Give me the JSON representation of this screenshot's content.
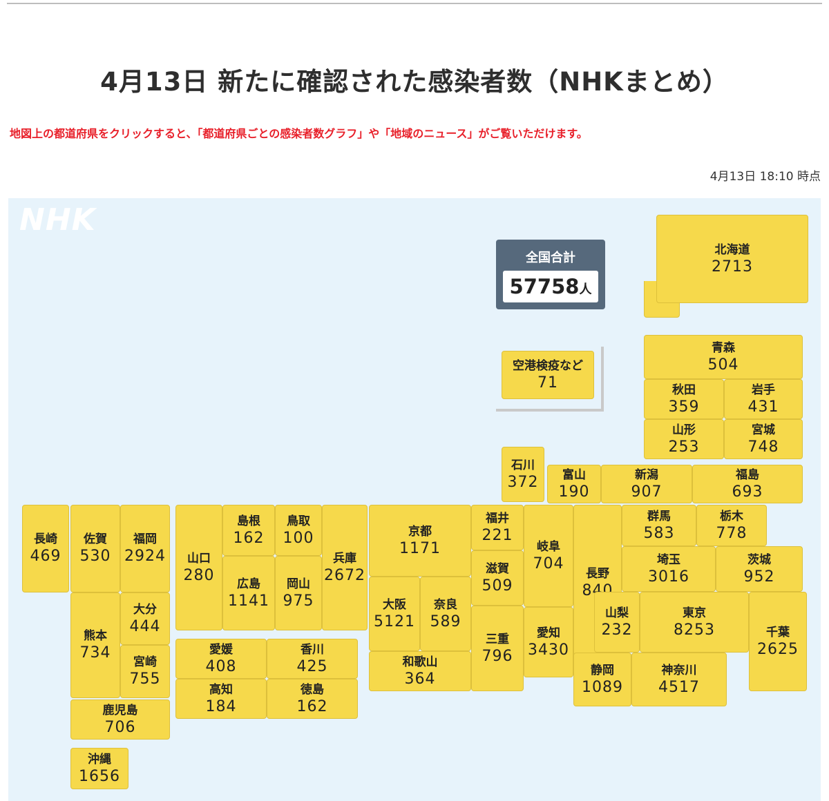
{
  "title": "4月13日 新たに確認された感染者数（NHKまとめ）",
  "notice": "地図上の都道府県をクリックすると、「都道府県ごとの感染者数グラフ」や「地域のニュース」がご覧いただけます。",
  "timestamp": "4月13日 18:10 時点",
  "logo": "NHK",
  "total": {
    "label": "全国合計",
    "value": "57758",
    "unit": "人"
  },
  "colors": {
    "pref_fill": "#f6d94b",
    "map_bg": "#e7f3fb",
    "total_box": "#56697c",
    "notice": "#e8202a"
  },
  "prefectures": {
    "hokkaido": {
      "name": "北海道",
      "count": "2713"
    },
    "airport": {
      "name": "空港検疫など",
      "count": "71"
    },
    "aomori": {
      "name": "青森",
      "count": "504"
    },
    "akita": {
      "name": "秋田",
      "count": "359"
    },
    "iwate": {
      "name": "岩手",
      "count": "431"
    },
    "yamagata": {
      "name": "山形",
      "count": "253"
    },
    "miyagi": {
      "name": "宮城",
      "count": "748"
    },
    "ishikawa": {
      "name": "石川",
      "count": "372"
    },
    "toyama": {
      "name": "富山",
      "count": "190"
    },
    "niigata": {
      "name": "新潟",
      "count": "907"
    },
    "fukushima": {
      "name": "福島",
      "count": "693"
    },
    "nagasaki": {
      "name": "長崎",
      "count": "469"
    },
    "saga": {
      "name": "佐賀",
      "count": "530"
    },
    "fukuoka": {
      "name": "福岡",
      "count": "2924"
    },
    "yamaguchi": {
      "name": "山口",
      "count": "280"
    },
    "shimane": {
      "name": "島根",
      "count": "162"
    },
    "tottori": {
      "name": "鳥取",
      "count": "100"
    },
    "hiroshima": {
      "name": "広島",
      "count": "1141"
    },
    "okayama": {
      "name": "岡山",
      "count": "975"
    },
    "hyogo": {
      "name": "兵庫",
      "count": "2672"
    },
    "kyoto": {
      "name": "京都",
      "count": "1171"
    },
    "osaka": {
      "name": "大阪",
      "count": "5121"
    },
    "nara": {
      "name": "奈良",
      "count": "589"
    },
    "wakayama": {
      "name": "和歌山",
      "count": "364"
    },
    "fukui": {
      "name": "福井",
      "count": "221"
    },
    "shiga": {
      "name": "滋賀",
      "count": "509"
    },
    "mie": {
      "name": "三重",
      "count": "796"
    },
    "gifu": {
      "name": "岐阜",
      "count": "704"
    },
    "aichi": {
      "name": "愛知",
      "count": "3430"
    },
    "nagano": {
      "name": "長野",
      "count": "840"
    },
    "gunma": {
      "name": "群馬",
      "count": "583"
    },
    "tochigi": {
      "name": "栃木",
      "count": "778"
    },
    "saitama": {
      "name": "埼玉",
      "count": "3016"
    },
    "ibaraki": {
      "name": "茨城",
      "count": "952"
    },
    "yamanashi": {
      "name": "山梨",
      "count": "232"
    },
    "tokyo": {
      "name": "東京",
      "count": "8253"
    },
    "chiba": {
      "name": "千葉",
      "count": "2625"
    },
    "shizuoka": {
      "name": "静岡",
      "count": "1089"
    },
    "kanagawa": {
      "name": "神奈川",
      "count": "4517"
    },
    "kumamoto": {
      "name": "熊本",
      "count": "734"
    },
    "oita": {
      "name": "大分",
      "count": "444"
    },
    "miyazaki": {
      "name": "宮崎",
      "count": "755"
    },
    "kagoshima": {
      "name": "鹿児島",
      "count": "706"
    },
    "okinawa": {
      "name": "沖縄",
      "count": "1656"
    },
    "ehime": {
      "name": "愛媛",
      "count": "408"
    },
    "kagawa": {
      "name": "香川",
      "count": "425"
    },
    "kochi": {
      "name": "高知",
      "count": "184"
    },
    "tokushima": {
      "name": "徳島",
      "count": "162"
    }
  }
}
